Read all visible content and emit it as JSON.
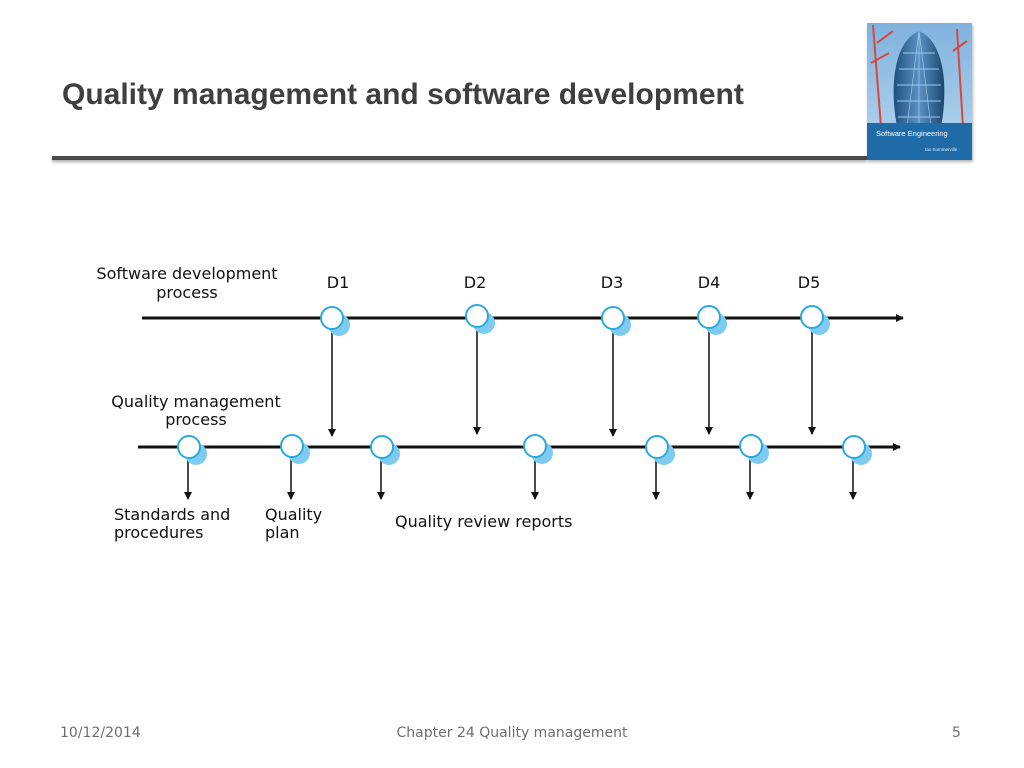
{
  "slide": {
    "title": "Quality management and software development"
  },
  "cover": {
    "book_title": "Software Engineering",
    "author": "Ian Sommerville"
  },
  "diagram": {
    "top_process": {
      "label_line1": "Software development",
      "label_line2": "process",
      "milestones": [
        "D1",
        "D2",
        "D3",
        "D4",
        "D5"
      ]
    },
    "bottom_process": {
      "label_line1": "Quality management",
      "label_line2": "process"
    },
    "outputs": {
      "standards_line1": "Standards and",
      "standards_line2": "procedures",
      "plan_line1": "Quality",
      "plan_line2": "plan",
      "reports": "Quality review reports"
    },
    "colors": {
      "line": "#111111",
      "node_fill": "#ffffff",
      "node_stroke": "#29a9e1",
      "node_shadow": "#7ecbf0"
    }
  },
  "footer": {
    "date": "10/12/2014",
    "chapter": "Chapter 24 Quality management",
    "page": "5"
  }
}
